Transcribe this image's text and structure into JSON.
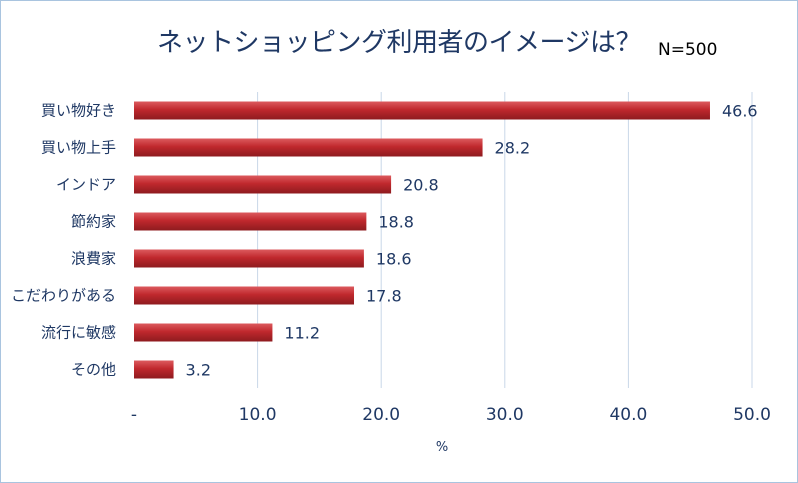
{
  "title": "ネットショッピング利用者のイメージは？",
  "sample_size": "N=500",
  "colors": {
    "bar": "#c0282d",
    "bar_dark": "#8e1b1f",
    "bar_light": "#dc5a5e",
    "grid": "#c9d7e8",
    "text": "#1f3864"
  },
  "chart_data": {
    "type": "bar",
    "orientation": "horizontal",
    "categories": [
      "買い物好き",
      "買い物上手",
      "インドア",
      "節約家",
      "浪費家",
      "こだわりがある",
      "流行に敏感",
      "その他"
    ],
    "values": [
      46.6,
      28.2,
      20.8,
      18.8,
      18.6,
      17.8,
      11.2,
      3.2
    ],
    "data_labels": [
      "46.6",
      "28.2",
      "20.8",
      "18.8",
      "18.6",
      "17.8",
      "11.2",
      "3.2"
    ],
    "xlim": [
      0,
      50
    ],
    "xticks": [
      0,
      10,
      20,
      30,
      40,
      50
    ],
    "xtick_labels": [
      "-",
      "10.0",
      "20.0",
      "30.0",
      "40.0",
      "50.0"
    ],
    "xlabel": "%",
    "grid": "vertical",
    "legend": "none"
  }
}
